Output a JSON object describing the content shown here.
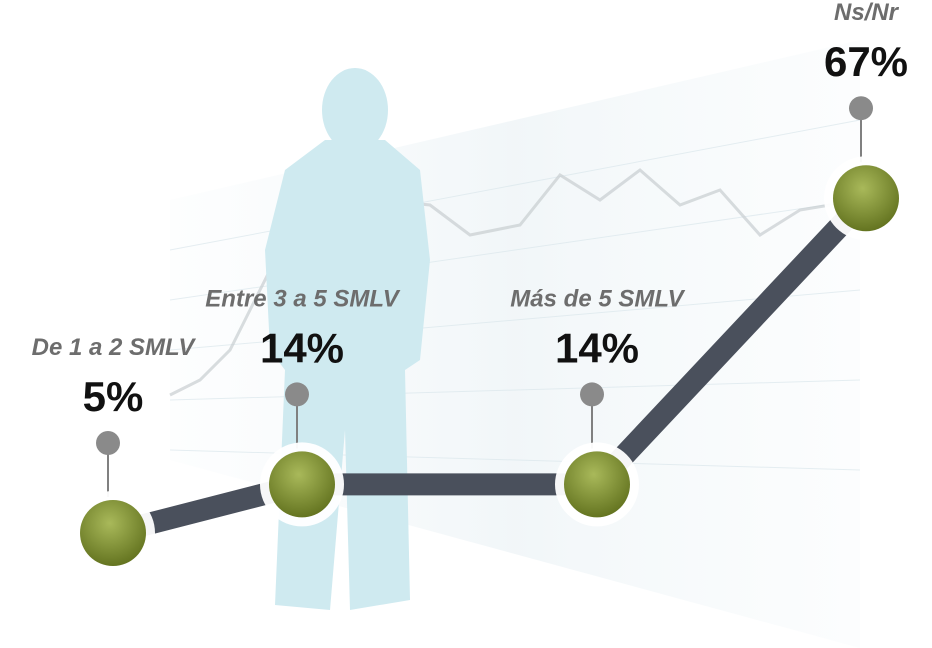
{
  "chart_data": {
    "type": "line",
    "categories": [
      "De 1 a 2 SMLV",
      "Entre 3 a 5 SMLV",
      "Más de 5 SMLV",
      "Ns/Nr"
    ],
    "values": [
      5,
      14,
      14,
      67
    ],
    "value_labels": [
      "5%",
      "14%",
      "14%",
      "67%"
    ],
    "color": "#7b8d2c",
    "line_color": "#4a505c"
  }
}
